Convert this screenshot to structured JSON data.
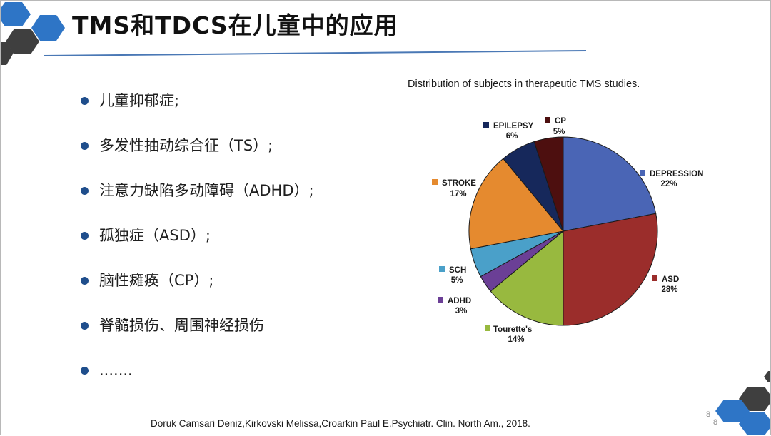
{
  "slide": {
    "title": "TMS和TDCS在儿童中的应用",
    "bullets": [
      "儿童抑郁症;",
      "多发性抽动综合征（TS）;",
      "注意力缺陷多动障碍（ADHD）;",
      "孤独症（ASD）;",
      "脑性瘫痪（CP）;",
      "脊髓损伤、周围神经损伤",
      "......."
    ],
    "citation": "Doruk Camsari Deniz,Kirkovski Melissa,Croarkin Paul E.Psychiatr. Clin. North Am., 2018.",
    "page_number": "8",
    "page_number_footer": "8"
  },
  "chart_data": {
    "type": "pie",
    "title": "Distribution of subjects in therapeutic TMS studies.",
    "slices": [
      {
        "label": "DEPRESSION",
        "value_text": "22%",
        "value": 22,
        "color": "#4a65b5"
      },
      {
        "label": "ASD",
        "value_text": "28%",
        "value": 28,
        "color": "#9b2d2b"
      },
      {
        "label": "Tourette's",
        "value_text": "14%",
        "value": 14,
        "color": "#98b93f"
      },
      {
        "label": "ADHD",
        "value_text": "3%",
        "value": 3,
        "color": "#6b3f96"
      },
      {
        "label": "SCH",
        "value_text": "5%",
        "value": 5,
        "color": "#4aa0c9"
      },
      {
        "label": "STROKE",
        "value_text": "17%",
        "value": 17,
        "color": "#e58a2f"
      },
      {
        "label": "EPILEPSY",
        "value_text": "6%",
        "value": 6,
        "color": "#16285b"
      },
      {
        "label": "CP",
        "value_text": "5%",
        "value": 5,
        "color": "#4d0f0f"
      }
    ]
  },
  "colors": {
    "hex_blue": "#2e75c6",
    "hex_dark": "#3f3f3f",
    "title_rule": "#4a78b5",
    "bullet_dot": "#1f4e8c"
  }
}
